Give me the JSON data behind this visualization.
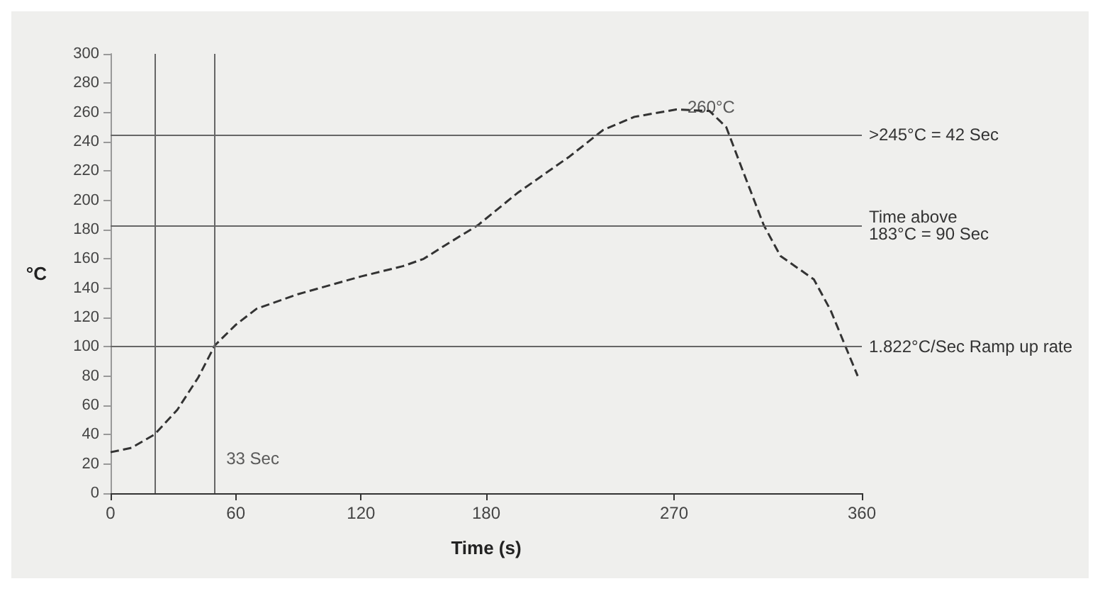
{
  "chart_data": {
    "type": "line",
    "xlabel": "Time (s)",
    "ylabel": "°C",
    "x": [
      0,
      10,
      21,
      32,
      42,
      50,
      60,
      70,
      90,
      120,
      140,
      150,
      160,
      176,
      195,
      220,
      236,
      251,
      271,
      287,
      295,
      303,
      313,
      321,
      337,
      345,
      358
    ],
    "series": [
      {
        "color": "#333333",
        "values": [
          28,
          31,
          40,
          57,
          79,
          101,
          115,
          126,
          136,
          148,
          155,
          160,
          169,
          183,
          205,
          230,
          248,
          257,
          262,
          261,
          250,
          220,
          183,
          162,
          146,
          125,
          80
        ]
      }
    ],
    "xlim": [
      0,
      360
    ],
    "xticks": [
      0,
      60,
      120,
      180,
      270,
      360
    ],
    "ylim": [
      0,
      300
    ],
    "yticks": [
      0,
      20,
      40,
      60,
      80,
      100,
      120,
      140,
      160,
      180,
      200,
      220,
      240,
      260,
      280,
      300
    ],
    "ref_lines": [
      {
        "axis": "y",
        "value": 100,
        "label": "1.822°C/Sec Ramp up rate",
        "color": "#666666"
      },
      {
        "axis": "y",
        "value": 183,
        "label": "Time above\n183°C = 90 Sec",
        "color": "#666666"
      },
      {
        "axis": "y",
        "value": 245,
        "label": ">245°C = 42 Sec",
        "color": "#666666"
      },
      {
        "axis": "x",
        "value": 21,
        "label": null,
        "color": "#666666"
      },
      {
        "axis": "x",
        "value": 50,
        "label": null,
        "color": "#666666"
      }
    ],
    "annotations": [
      {
        "text": "260°C",
        "x": 271,
        "y": 262
      },
      {
        "text": "33 Sec",
        "x": 50,
        "y": 22
      }
    ],
    "grid": false,
    "marker": "none",
    "line_style": "dashed"
  }
}
